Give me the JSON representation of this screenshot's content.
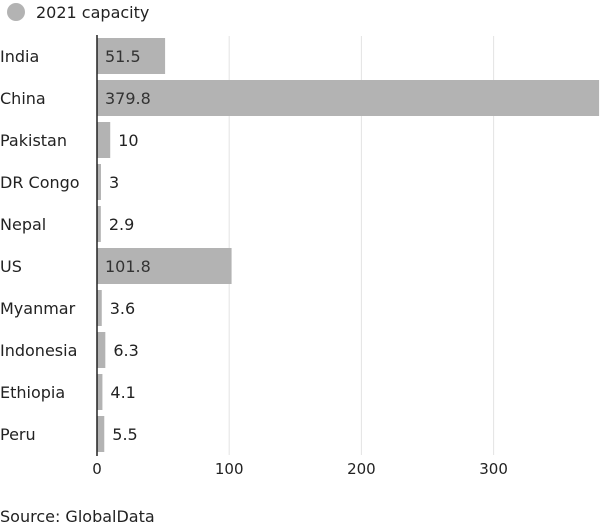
{
  "chart_data": {
    "type": "bar",
    "orientation": "horizontal",
    "categories": [
      "India",
      "China",
      "Pakistan",
      "DR Congo",
      "Nepal",
      "US",
      "Myanmar",
      "Indonesia",
      "Ethiopia",
      "Peru"
    ],
    "series": [
      {
        "name": "2021 capacity",
        "values": [
          51.5,
          379.8,
          10,
          3,
          2.9,
          101.8,
          3.6,
          6.3,
          4.1,
          5.5
        ],
        "color": "#b3b3b3"
      }
    ],
    "xlim": [
      0,
      380
    ],
    "xticks": [
      0,
      100,
      200,
      300
    ],
    "grid": true,
    "legend": "top-left",
    "source": "Source: GlobalData"
  }
}
